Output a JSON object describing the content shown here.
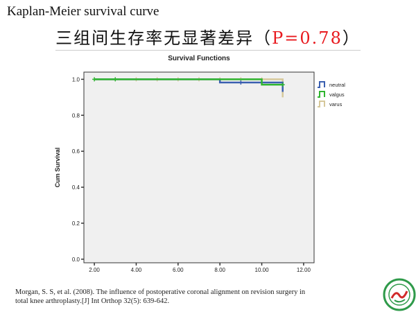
{
  "slide": {
    "title": "Kaplan-Meier survival curve",
    "subtitle_cn": "三组间生存率无显著差异（",
    "p_value": "P=0.78",
    "subtitle_close": "）",
    "citation_line1": "Morgan, S. S, et al. (2008). The influence of postoperative coronal alignment on revision surgery in",
    "citation_line2": "total knee arthroplasty.[J] Int Orthop 32(5): 639-642.",
    "logo": "university-seal"
  },
  "chart_data": {
    "type": "line",
    "step": true,
    "title": "Survival Functions",
    "xlabel": "",
    "ylabel": "Cum Survival",
    "xlim": [
      1.5,
      12.5
    ],
    "ylim": [
      -0.02,
      1.04
    ],
    "xticks": [
      2,
      4,
      6,
      8,
      10,
      12
    ],
    "xtick_labels": [
      "2.00",
      "4.00",
      "6.00",
      "8.00",
      "10.00",
      "12.00"
    ],
    "yticks": [
      0.0,
      0.2,
      0.4,
      0.6,
      0.8,
      1.0
    ],
    "ytick_labels": [
      "0.0",
      "0.2",
      "0.4",
      "0.6",
      "0.8",
      "1.0"
    ],
    "grid": false,
    "legend_position": "right",
    "plot_background": "#f0f0f0",
    "series": [
      {
        "name": "neutral",
        "color": "#3a5fb0",
        "steps": [
          [
            2,
            1.0
          ],
          [
            8,
            0.982
          ],
          [
            11,
            0.93
          ]
        ],
        "censored": [
          [
            9,
            0.982
          ]
        ]
      },
      {
        "name": "valgus",
        "color": "#2fb52f",
        "steps": [
          [
            2,
            1.0
          ],
          [
            10,
            0.97
          ],
          [
            11,
            0.97
          ]
        ],
        "censored": [
          [
            2,
            1.0
          ],
          [
            3,
            1.0
          ],
          [
            11,
            0.97
          ]
        ]
      },
      {
        "name": "varus",
        "color": "#d6c89a",
        "steps": [
          [
            2,
            1.0
          ],
          [
            11,
            1.0
          ],
          [
            11,
            0.9
          ]
        ],
        "censored": [
          [
            4,
            1.0
          ],
          [
            5,
            1.0
          ],
          [
            6,
            1.0
          ],
          [
            7,
            1.0
          ],
          [
            8,
            1.0
          ],
          [
            9,
            1.0
          ],
          [
            10,
            1.0
          ]
        ]
      }
    ]
  }
}
